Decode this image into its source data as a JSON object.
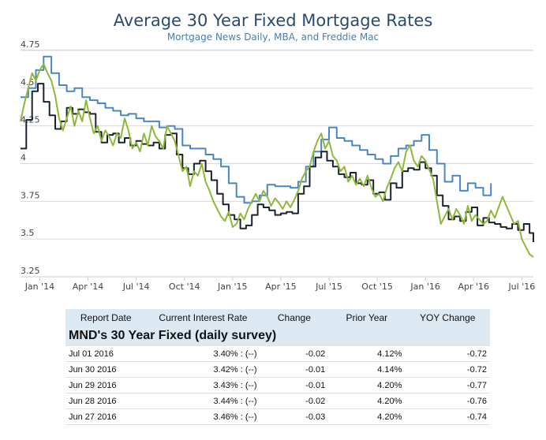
{
  "chart_data": {
    "type": "line",
    "title": "Average 30 Year Fixed Mortgage Rates",
    "subtitle": "Mortgage News Daily, MBA, and Freddie Mac",
    "ylim": [
      3.25,
      4.75
    ],
    "yticks": [
      "3.25",
      "3.5",
      "3.75",
      "4",
      "4.25",
      "4.5",
      "4.75"
    ],
    "yticks_values": [
      3.25,
      3.5,
      3.75,
      4.0,
      4.25,
      4.5,
      4.75
    ],
    "xlim": [
      2013.9,
      2016.56
    ],
    "xticks": [
      "Jan '14",
      "Apr '14",
      "Jul '14",
      "Oct '14",
      "Jan '15",
      "Apr '15",
      "Jul '15",
      "Oct '15",
      "Jan '16",
      "Apr '16",
      "Jul '16"
    ],
    "xticks_values": [
      2014.0,
      2014.25,
      2014.5,
      2014.75,
      2015.0,
      2015.25,
      2015.5,
      2015.75,
      2016.0,
      2016.25,
      2016.5
    ],
    "series": [
      {
        "name": "MBA",
        "color": "#4a86c5",
        "step": true,
        "x": [
          2013.9,
          2013.94,
          2013.98,
          2014.02,
          2014.06,
          2014.1,
          2014.14,
          2014.18,
          2014.22,
          2014.26,
          2014.3,
          2014.34,
          2014.38,
          2014.42,
          2014.46,
          2014.5,
          2014.54,
          2014.58,
          2014.62,
          2014.66,
          2014.7,
          2014.74,
          2014.78,
          2014.82,
          2014.86,
          2014.9,
          2014.94,
          2014.98,
          2015.02,
          2015.06,
          2015.1,
          2015.14,
          2015.18,
          2015.22,
          2015.26,
          2015.3,
          2015.34,
          2015.38,
          2015.42,
          2015.46,
          2015.5,
          2015.54,
          2015.58,
          2015.62,
          2015.66,
          2015.7,
          2015.74,
          2015.78,
          2015.82,
          2015.86,
          2015.9,
          2015.94,
          2015.98,
          2016.02,
          2016.06,
          2016.1,
          2016.14,
          2016.18,
          2016.22,
          2016.26,
          2016.3,
          2016.34
        ],
        "values": [
          4.44,
          4.5,
          4.62,
          4.71,
          4.6,
          4.52,
          4.48,
          4.5,
          4.44,
          4.42,
          4.4,
          4.37,
          4.35,
          4.32,
          4.33,
          4.3,
          4.28,
          4.28,
          4.24,
          4.25,
          4.23,
          4.12,
          4.1,
          4.1,
          4.06,
          4.03,
          3.98,
          3.87,
          3.78,
          3.74,
          3.75,
          3.79,
          3.86,
          3.85,
          3.85,
          3.84,
          3.88,
          3.98,
          4.08,
          4.16,
          4.24,
          4.17,
          4.15,
          4.12,
          4.09,
          4.06,
          4.03,
          4.0,
          4.05,
          4.1,
          4.12,
          4.15,
          4.19,
          4.09,
          4.0,
          3.88,
          3.92,
          3.82,
          3.87,
          3.84,
          3.79,
          3.87
        ]
      },
      {
        "name": "Freddie Mac",
        "color": "#1b2330",
        "step": true,
        "x": [
          2013.9,
          2013.93,
          2013.96,
          2013.99,
          2014.02,
          2014.05,
          2014.08,
          2014.11,
          2014.14,
          2014.17,
          2014.2,
          2014.23,
          2014.26,
          2014.29,
          2014.32,
          2014.35,
          2014.38,
          2014.41,
          2014.44,
          2014.47,
          2014.5,
          2014.53,
          2014.56,
          2014.59,
          2014.62,
          2014.65,
          2014.68,
          2014.71,
          2014.74,
          2014.77,
          2014.8,
          2014.83,
          2014.86,
          2014.89,
          2014.92,
          2014.95,
          2014.98,
          2015.01,
          2015.04,
          2015.07,
          2015.1,
          2015.13,
          2015.16,
          2015.19,
          2015.22,
          2015.25,
          2015.28,
          2015.31,
          2015.34,
          2015.37,
          2015.4,
          2015.43,
          2015.46,
          2015.49,
          2015.52,
          2015.55,
          2015.58,
          2015.61,
          2015.64,
          2015.67,
          2015.7,
          2015.73,
          2015.76,
          2015.79,
          2015.82,
          2015.85,
          2015.88,
          2015.91,
          2015.94,
          2015.97,
          2016.0,
          2016.03,
          2016.06,
          2016.09,
          2016.12,
          2016.15,
          2016.18,
          2016.21,
          2016.24,
          2016.27,
          2016.3,
          2016.33,
          2016.36,
          2016.39,
          2016.42,
          2016.45,
          2016.48,
          2016.51,
          2016.54,
          2016.56
        ],
        "values": [
          4.1,
          4.29,
          4.48,
          4.53,
          4.41,
          4.32,
          4.23,
          4.28,
          4.37,
          4.33,
          4.36,
          4.34,
          4.33,
          4.21,
          4.14,
          4.19,
          4.2,
          4.14,
          4.17,
          4.12,
          4.15,
          4.13,
          4.12,
          4.14,
          4.1,
          4.19,
          4.2,
          4.06,
          3.97,
          3.93,
          4.0,
          4.02,
          3.95,
          3.89,
          3.8,
          3.73,
          3.66,
          3.63,
          3.57,
          3.59,
          3.66,
          3.73,
          3.71,
          3.69,
          3.66,
          3.67,
          3.68,
          3.67,
          3.8,
          3.85,
          3.98,
          4.04,
          4.08,
          4.02,
          3.98,
          3.93,
          3.91,
          3.94,
          3.87,
          3.86,
          3.89,
          3.8,
          3.81,
          3.76,
          3.87,
          3.84,
          3.95,
          3.97,
          3.96,
          4.01,
          3.97,
          3.92,
          3.79,
          3.72,
          3.63,
          3.65,
          3.62,
          3.68,
          3.71,
          3.59,
          3.64,
          3.61,
          3.6,
          3.58,
          3.57,
          3.6,
          3.56,
          3.6,
          3.54,
          3.48
        ]
      },
      {
        "name": "Mortgage News Daily",
        "color": "#8fb83a",
        "step": false,
        "x": [
          2013.9,
          2013.92,
          2013.94,
          2013.96,
          2013.98,
          2014.0,
          2014.02,
          2014.04,
          2014.06,
          2014.08,
          2014.1,
          2014.12,
          2014.14,
          2014.16,
          2014.18,
          2014.2,
          2014.22,
          2014.24,
          2014.26,
          2014.28,
          2014.3,
          2014.32,
          2014.34,
          2014.36,
          2014.38,
          2014.4,
          2014.42,
          2014.44,
          2014.46,
          2014.48,
          2014.5,
          2014.52,
          2014.54,
          2014.56,
          2014.58,
          2014.6,
          2014.62,
          2014.64,
          2014.66,
          2014.68,
          2014.7,
          2014.72,
          2014.74,
          2014.76,
          2014.78,
          2014.8,
          2014.82,
          2014.84,
          2014.86,
          2014.88,
          2014.9,
          2014.92,
          2014.94,
          2014.96,
          2014.98,
          2015.0,
          2015.02,
          2015.04,
          2015.06,
          2015.08,
          2015.1,
          2015.12,
          2015.14,
          2015.16,
          2015.18,
          2015.2,
          2015.22,
          2015.24,
          2015.26,
          2015.28,
          2015.3,
          2015.32,
          2015.34,
          2015.36,
          2015.38,
          2015.4,
          2015.42,
          2015.44,
          2015.46,
          2015.48,
          2015.5,
          2015.52,
          2015.54,
          2015.56,
          2015.58,
          2015.6,
          2015.62,
          2015.64,
          2015.66,
          2015.68,
          2015.7,
          2015.72,
          2015.74,
          2015.76,
          2015.78,
          2015.8,
          2015.82,
          2015.84,
          2015.86,
          2015.88,
          2015.9,
          2015.92,
          2015.94,
          2015.96,
          2015.98,
          2016.0,
          2016.02,
          2016.04,
          2016.06,
          2016.08,
          2016.1,
          2016.12,
          2016.14,
          2016.16,
          2016.18,
          2016.2,
          2016.22,
          2016.24,
          2016.26,
          2016.28,
          2016.3,
          2016.32,
          2016.34,
          2016.36,
          2016.38,
          2016.4,
          2016.42,
          2016.44,
          2016.46,
          2016.48,
          2016.5,
          2016.52,
          2016.54,
          2016.56
        ],
        "values": [
          4.28,
          4.4,
          4.5,
          4.6,
          4.55,
          4.62,
          4.66,
          4.6,
          4.55,
          4.45,
          4.3,
          4.22,
          4.3,
          4.38,
          4.25,
          4.35,
          4.28,
          4.42,
          4.3,
          4.2,
          4.25,
          4.15,
          4.22,
          4.18,
          4.12,
          4.2,
          4.17,
          4.3,
          4.22,
          4.1,
          4.14,
          4.08,
          4.2,
          4.12,
          4.25,
          4.18,
          4.15,
          4.1,
          4.25,
          4.2,
          4.15,
          4.05,
          3.95,
          3.98,
          3.85,
          3.95,
          3.92,
          4.0,
          3.88,
          3.82,
          3.75,
          3.7,
          3.65,
          3.62,
          3.68,
          3.58,
          3.6,
          3.67,
          3.63,
          3.7,
          3.75,
          3.8,
          3.75,
          3.82,
          3.78,
          3.72,
          3.77,
          3.74,
          3.7,
          3.75,
          3.71,
          3.76,
          3.82,
          3.9,
          3.95,
          3.98,
          4.08,
          4.15,
          4.2,
          4.1,
          4.15,
          4.05,
          4.02,
          3.95,
          3.98,
          3.88,
          3.92,
          3.86,
          3.9,
          3.85,
          3.92,
          3.84,
          3.78,
          3.8,
          3.75,
          3.84,
          3.9,
          3.97,
          4.01,
          3.95,
          4.08,
          4.12,
          4.02,
          3.98,
          4.05,
          4.02,
          3.96,
          3.9,
          3.75,
          3.6,
          3.65,
          3.7,
          3.63,
          3.7,
          3.66,
          3.6,
          3.72,
          3.62,
          3.66,
          3.63,
          3.6,
          3.62,
          3.69,
          3.64,
          3.71,
          3.78,
          3.72,
          3.66,
          3.6,
          3.62,
          3.5,
          3.45,
          3.4,
          3.38
        ]
      }
    ]
  },
  "table": {
    "headers": [
      "Report Date",
      "Current Interest Rate",
      "Change",
      "Prior Year",
      "YOY Change"
    ],
    "caption": "MND's 30 Year Fixed (daily survey)",
    "rows": [
      {
        "date": "Jul 01 2016",
        "rate": "3.40% : (--)",
        "change": "-0.02",
        "prior": "4.12%",
        "yoy": "-0.72"
      },
      {
        "date": "Jun 30 2016",
        "rate": "3.42% : (--)",
        "change": "-0.01",
        "prior": "4.14%",
        "yoy": "-0.72"
      },
      {
        "date": "Jun 29 2016",
        "rate": "3.43% : (--)",
        "change": "-0.01",
        "prior": "4.20%",
        "yoy": "-0.77"
      },
      {
        "date": "Jun 28 2016",
        "rate": "3.44% : (--)",
        "change": "-0.02",
        "prior": "4.20%",
        "yoy": "-0.76"
      },
      {
        "date": "Jun 27 2016",
        "rate": "3.46% : (--)",
        "change": "-0.03",
        "prior": "4.20%",
        "yoy": "-0.74"
      }
    ]
  }
}
